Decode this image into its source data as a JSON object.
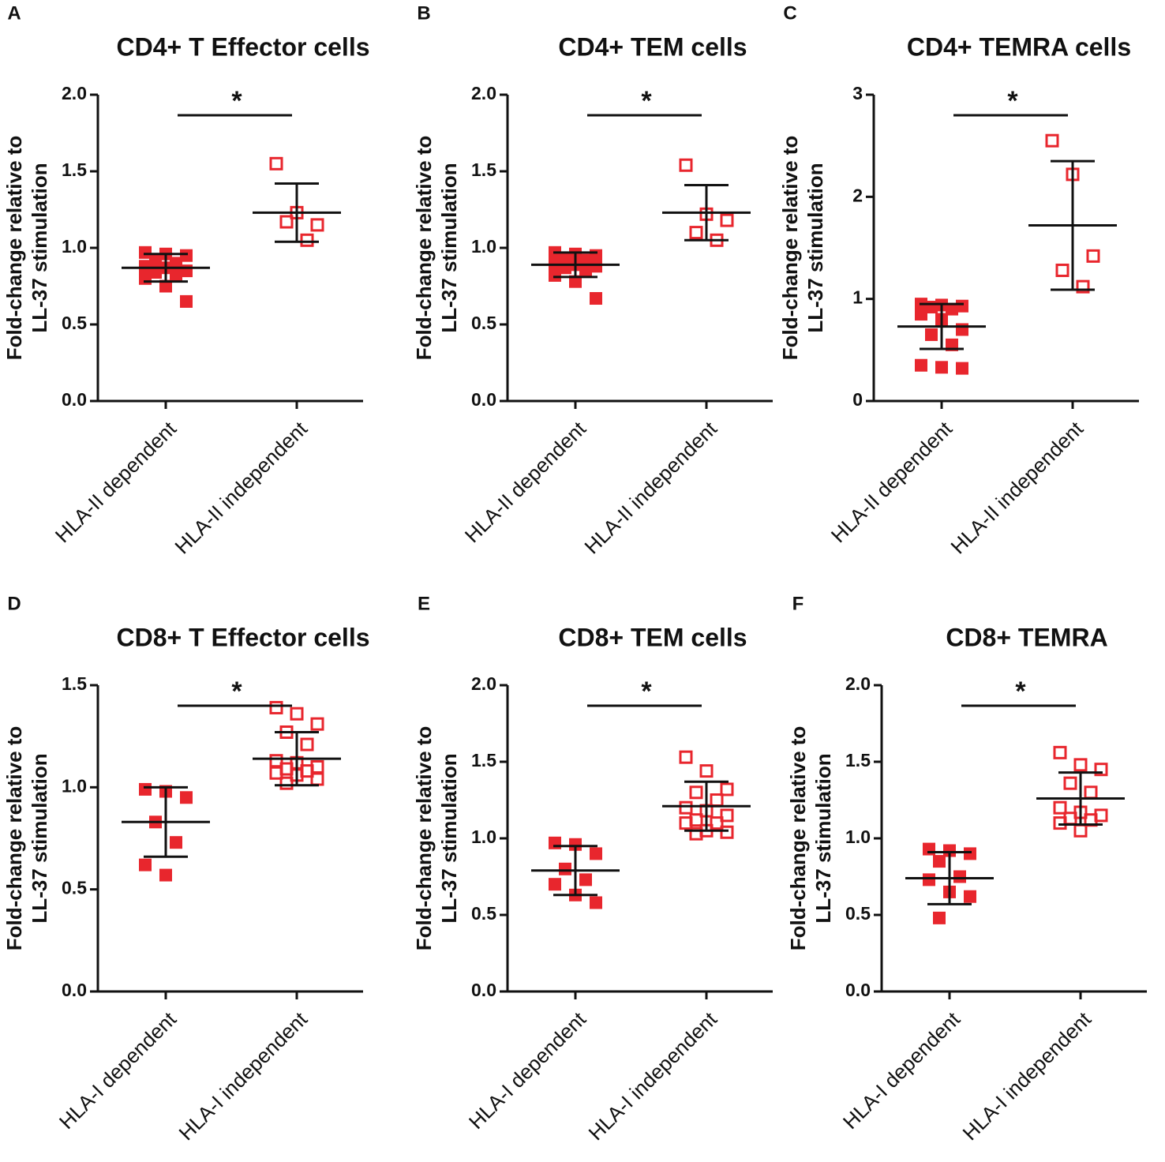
{
  "chart_data": [
    {
      "type": "dot",
      "panel": "A",
      "title": "CD4+ T Effector cells",
      "ylabel": [
        "Fold-change relative to",
        "LL-37 stimulation"
      ],
      "categories": [
        "HLA-II dependent",
        "HLA-II independent"
      ],
      "groups": [
        {
          "color": "#e8262d",
          "filled": true,
          "values": [
            0.97,
            0.96,
            0.95,
            0.92,
            0.9,
            0.88,
            0.87,
            0.85,
            0.84,
            0.82,
            0.8,
            0.75,
            0.65
          ],
          "mean": 0.87,
          "sd": 0.09
        },
        {
          "color": "#e8262d",
          "filled": false,
          "values": [
            1.55,
            1.23,
            1.15,
            1.17,
            1.05
          ],
          "mean": 1.23,
          "sd": 0.19
        }
      ],
      "ylim": [
        0,
        2
      ],
      "yticks": [
        {
          "value": 0,
          "label": "0.0"
        },
        0.5,
        {
          "value": 1,
          "label": "1.0"
        },
        1.5,
        {
          "value": 2,
          "label": "2.0"
        }
      ],
      "annotation": "*"
    },
    {
      "type": "dot",
      "panel": "B",
      "title": "CD4+ TEM cells",
      "ylabel": [
        "Fold-change relative to",
        "LL-37 stimulation"
      ],
      "categories": [
        "HLA-II dependent",
        "HLA-II independent"
      ],
      "groups": [
        {
          "color": "#e8262d",
          "filled": true,
          "values": [
            0.97,
            0.96,
            0.95,
            0.93,
            0.92,
            0.9,
            0.89,
            0.88,
            0.87,
            0.85,
            0.82,
            0.78,
            0.67
          ],
          "mean": 0.89,
          "sd": 0.08
        },
        {
          "color": "#e8262d",
          "filled": false,
          "values": [
            1.54,
            1.22,
            1.18,
            1.1,
            1.05
          ],
          "mean": 1.23,
          "sd": 0.18
        }
      ],
      "ylim": [
        0,
        2
      ],
      "yticks": [
        {
          "value": 0,
          "label": "0.0"
        },
        0.5,
        {
          "value": 1,
          "label": "1.0"
        },
        1.5,
        {
          "value": 2,
          "label": "2.0"
        }
      ],
      "annotation": "*"
    },
    {
      "type": "dot",
      "panel": "C",
      "title": "CD4+ TEMRA cells",
      "ylabel": [
        "Fold-change relative to",
        "LL-37 stimulation"
      ],
      "categories": [
        "HLA-II dependent",
        "HLA-II independent"
      ],
      "groups": [
        {
          "color": "#e8262d",
          "filled": true,
          "values": [
            0.95,
            0.94,
            0.93,
            0.92,
            0.9,
            0.85,
            0.8,
            0.7,
            0.65,
            0.55,
            0.35,
            0.33,
            0.32
          ],
          "mean": 0.73,
          "sd": 0.22
        },
        {
          "color": "#e8262d",
          "filled": false,
          "values": [
            2.55,
            2.22,
            1.42,
            1.28,
            1.12
          ],
          "mean": 1.72,
          "sd": 0.63
        }
      ],
      "ylim": [
        0,
        3
      ],
      "yticks": [
        0,
        1,
        2,
        3
      ],
      "annotation": "*"
    },
    {
      "type": "dot",
      "panel": "D",
      "title": "CD8+ T Effector cells",
      "ylabel": [
        "Fold-change relative to",
        "LL-37 stimulation"
      ],
      "categories": [
        "HLA-I dependent",
        "HLA-I independent"
      ],
      "groups": [
        {
          "color": "#e8262d",
          "filled": true,
          "values": [
            0.99,
            0.98,
            0.95,
            0.83,
            0.73,
            0.62,
            0.57
          ],
          "mean": 0.83,
          "sd": 0.17
        },
        {
          "color": "#e8262d",
          "filled": false,
          "values": [
            1.39,
            1.36,
            1.31,
            1.27,
            1.21,
            1.13,
            1.12,
            1.1,
            1.09,
            1.08,
            1.07,
            1.06,
            1.04,
            1.02
          ],
          "mean": 1.14,
          "sd": 0.13
        }
      ],
      "ylim": [
        0,
        1.5
      ],
      "yticks": [
        {
          "value": 0,
          "label": "0.0"
        },
        0.5,
        {
          "value": 1,
          "label": "1.0"
        },
        1.5
      ],
      "annotation": "*"
    },
    {
      "type": "dot",
      "panel": "E",
      "title": "CD8+ TEM cells",
      "ylabel": [
        "Fold-change relative to",
        "LL-37 stimulation"
      ],
      "categories": [
        "HLA-I dependent",
        "HLA-I independent"
      ],
      "groups": [
        {
          "color": "#e8262d",
          "filled": true,
          "values": [
            0.97,
            0.96,
            0.9,
            0.8,
            0.73,
            0.7,
            0.63,
            0.58
          ],
          "mean": 0.79,
          "sd": 0.16
        },
        {
          "color": "#e8262d",
          "filled": false,
          "values": [
            1.53,
            1.44,
            1.32,
            1.3,
            1.25,
            1.2,
            1.18,
            1.15,
            1.12,
            1.1,
            1.1,
            1.05,
            1.04,
            1.03
          ],
          "mean": 1.21,
          "sd": 0.16
        }
      ],
      "ylim": [
        0,
        2
      ],
      "yticks": [
        {
          "value": 0,
          "label": "0.0"
        },
        0.5,
        {
          "value": 1,
          "label": "1.0"
        },
        1.5,
        {
          "value": 2,
          "label": "2.0"
        }
      ],
      "annotation": "*"
    },
    {
      "type": "dot",
      "panel": "F",
      "title": "CD8+ TEMRA",
      "ylabel": [
        "Fold-change relative to",
        "LL-37 stimulation"
      ],
      "categories": [
        "HLA-I dependent",
        "HLA-I independent"
      ],
      "groups": [
        {
          "color": "#e8262d",
          "filled": true,
          "values": [
            0.93,
            0.92,
            0.9,
            0.85,
            0.75,
            0.73,
            0.65,
            0.62,
            0.48
          ],
          "mean": 0.74,
          "sd": 0.17
        },
        {
          "color": "#e8262d",
          "filled": false,
          "values": [
            1.56,
            1.48,
            1.45,
            1.36,
            1.3,
            1.2,
            1.17,
            1.15,
            1.13,
            1.12,
            1.1,
            1.05
          ],
          "mean": 1.26,
          "sd": 0.17
        }
      ],
      "ylim": [
        0,
        2
      ],
      "yticks": [
        {
          "value": 0,
          "label": "0.0"
        },
        0.5,
        {
          "value": 1,
          "label": "1.0"
        },
        1.5,
        {
          "value": 2,
          "label": "2.0"
        }
      ],
      "annotation": "*"
    }
  ]
}
